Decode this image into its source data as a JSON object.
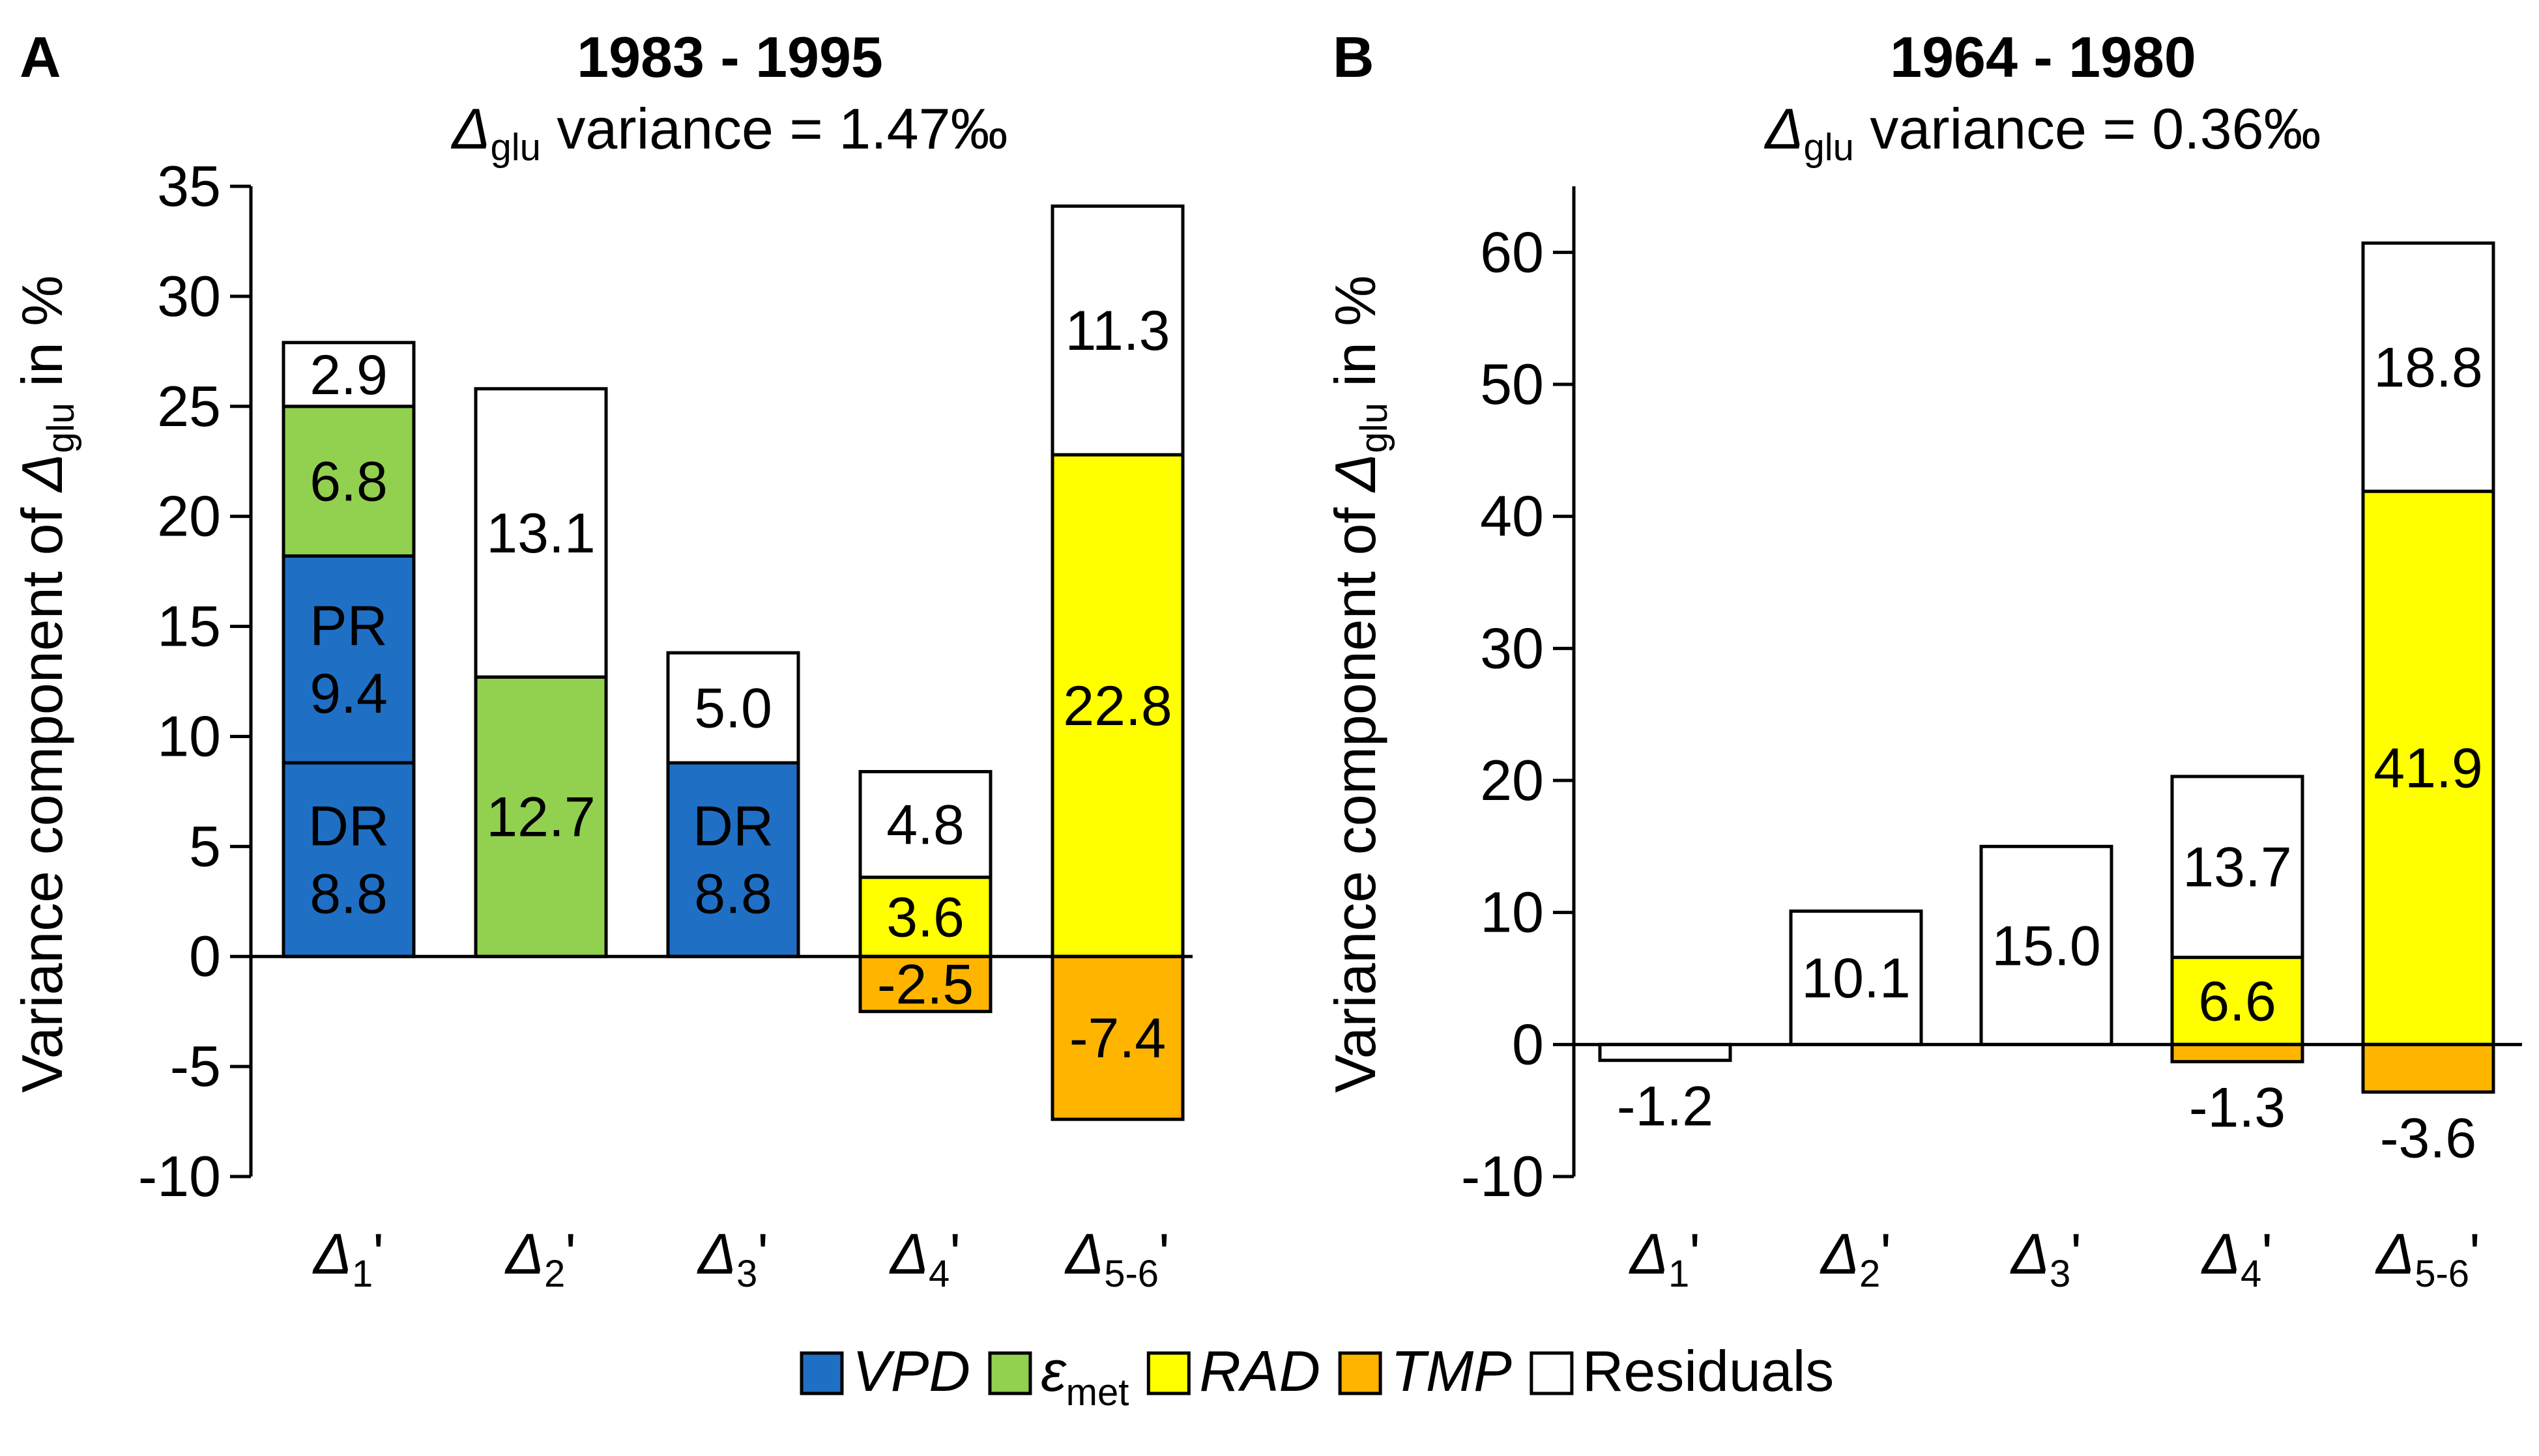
{
  "colors": {
    "VPD": "#1f6fc5",
    "emet": "#92d050",
    "RAD": "#ffff00",
    "TMP": "#ffb400",
    "Residuals": "#ffffff"
  },
  "legend": {
    "items": [
      {
        "key": "VPD",
        "label": "VPD",
        "italic": true
      },
      {
        "key": "emet",
        "label": "ε",
        "sub": "met",
        "italic": true
      },
      {
        "key": "RAD",
        "label": "RAD",
        "italic": true
      },
      {
        "key": "TMP",
        "label": "TMP",
        "italic": true
      },
      {
        "key": "Residuals",
        "label": "Residuals",
        "italic": false
      }
    ]
  },
  "y_axis_label": {
    "prefix": "Variance component of ",
    "symbol": "Δ",
    "sub": "glu",
    "suffix": " in %"
  },
  "chart_data": [
    {
      "type": "bar",
      "stacked": true,
      "panel": "A",
      "title": "1983 - 1995",
      "subtitle": {
        "symbol": "Δ",
        "sub": "glu",
        "text": " variance = 1.47‰"
      },
      "ylim": [
        -10,
        35
      ],
      "yticks": [
        35,
        30,
        25,
        20,
        15,
        10,
        5,
        0,
        -5,
        -10
      ],
      "categories": [
        {
          "base": "Δ",
          "sub": "1",
          "prime": "'"
        },
        {
          "base": "Δ",
          "sub": "2",
          "prime": "'"
        },
        {
          "base": "Δ",
          "sub": "3",
          "prime": "'"
        },
        {
          "base": "Δ",
          "sub": "4",
          "prime": "'"
        },
        {
          "base": "Δ",
          "sub": "5-6",
          "prime": "'"
        }
      ],
      "bars": [
        {
          "segments": [
            {
              "key": "VPD",
              "value": 8.8,
              "label": [
                "DR",
                "8.8"
              ]
            },
            {
              "key": "VPD",
              "value": 9.4,
              "label": [
                "PR",
                "9.4"
              ]
            },
            {
              "key": "emet",
              "value": 6.8,
              "label": [
                "6.8"
              ]
            },
            {
              "key": "Residuals",
              "value": 2.9,
              "label": [
                "2.9"
              ]
            }
          ]
        },
        {
          "segments": [
            {
              "key": "emet",
              "value": 12.7,
              "label": [
                "12.7"
              ]
            },
            {
              "key": "Residuals",
              "value": 13.1,
              "label": [
                "13.1"
              ]
            }
          ]
        },
        {
          "segments": [
            {
              "key": "VPD",
              "value": 8.8,
              "label": [
                "DR",
                "8.8"
              ]
            },
            {
              "key": "Residuals",
              "value": 5.0,
              "label": [
                "5.0"
              ]
            }
          ]
        },
        {
          "segments": [
            {
              "key": "RAD",
              "value": 3.6,
              "label": [
                "3.6"
              ]
            },
            {
              "key": "Residuals",
              "value": 4.8,
              "label": [
                "4.8"
              ]
            },
            {
              "key": "TMP",
              "value": -2.5,
              "label": [
                "-2.5"
              ]
            }
          ]
        },
        {
          "segments": [
            {
              "key": "RAD",
              "value": 22.8,
              "label": [
                "22.8"
              ]
            },
            {
              "key": "Residuals",
              "value": 11.3,
              "label": [
                "11.3"
              ]
            },
            {
              "key": "TMP",
              "value": -7.4,
              "label": [
                "-7.4"
              ]
            }
          ]
        }
      ]
    },
    {
      "type": "bar",
      "stacked": true,
      "panel": "B",
      "title": "1964 - 1980",
      "subtitle": {
        "symbol": "Δ",
        "sub": "glu",
        "text": " variance = 0.36‰"
      },
      "ylim": [
        -10,
        65
      ],
      "yticks": [
        60,
        50,
        40,
        30,
        20,
        10,
        0,
        -10
      ],
      "categories": [
        {
          "base": "Δ",
          "sub": "1",
          "prime": "'"
        },
        {
          "base": "Δ",
          "sub": "2",
          "prime": "'"
        },
        {
          "base": "Δ",
          "sub": "3",
          "prime": "'"
        },
        {
          "base": "Δ",
          "sub": "4",
          "prime": "'"
        },
        {
          "base": "Δ",
          "sub": "5-6",
          "prime": "'"
        }
      ],
      "bars": [
        {
          "segments": [
            {
              "key": "Residuals",
              "value": -1.2,
              "label": [
                "-1.2"
              ],
              "label_outside": true
            }
          ]
        },
        {
          "segments": [
            {
              "key": "Residuals",
              "value": 10.1,
              "label": [
                "10.1"
              ]
            }
          ]
        },
        {
          "segments": [
            {
              "key": "Residuals",
              "value": 15.0,
              "label": [
                "15.0"
              ]
            }
          ]
        },
        {
          "segments": [
            {
              "key": "RAD",
              "value": 6.6,
              "label": [
                "6.6"
              ]
            },
            {
              "key": "Residuals",
              "value": 13.7,
              "label": [
                "13.7"
              ]
            },
            {
              "key": "TMP",
              "value": -1.3,
              "label": [
                "-1.3"
              ],
              "label_outside": true
            }
          ]
        },
        {
          "segments": [
            {
              "key": "RAD",
              "value": 41.9,
              "label": [
                "41.9"
              ]
            },
            {
              "key": "Residuals",
              "value": 18.8,
              "label": [
                "18.8"
              ]
            },
            {
              "key": "TMP",
              "value": -3.6,
              "label": [
                "-3.6"
              ],
              "label_outside": true
            }
          ]
        }
      ]
    }
  ]
}
